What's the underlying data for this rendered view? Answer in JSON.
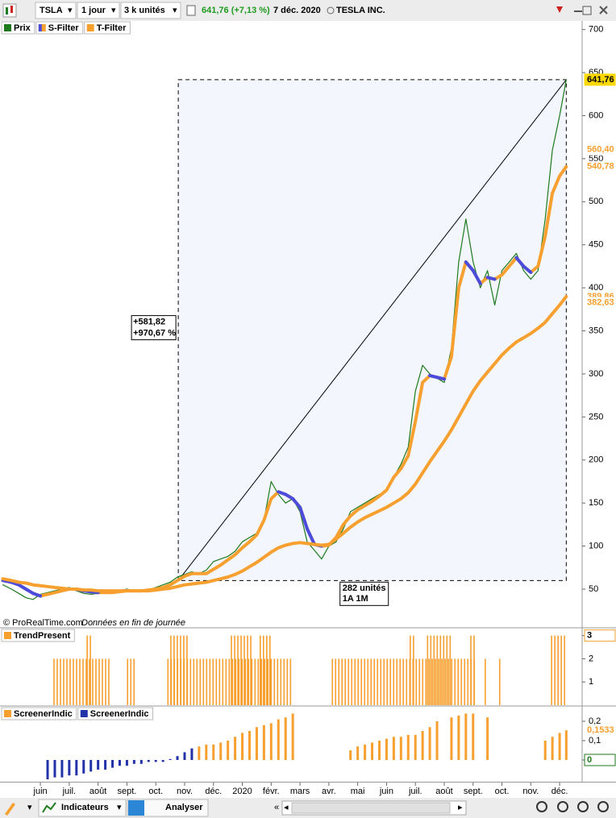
{
  "toolbar": {
    "symbol": "TSLA",
    "interval": "1 jour",
    "units": "3 k unités",
    "quote": "641,76 (+7,13 %)",
    "date": "7 déc. 2020",
    "name": "TESLA INC."
  },
  "bottom_toolbar": {
    "indicators": "Indicateurs",
    "analyze": "Analyser"
  },
  "source": "© ProRealTime.com",
  "source_note": "Données en fin de journée",
  "chart_data": [
    {
      "type": "line",
      "xlim": [
        -1.4,
        18.78
      ],
      "xticks": [
        {
          "value": 0,
          "label": "juin"
        },
        {
          "value": 1,
          "label": "juil."
        },
        {
          "value": 2,
          "label": "août"
        },
        {
          "value": 3,
          "label": "sept."
        },
        {
          "value": 4,
          "label": "oct."
        },
        {
          "value": 5,
          "label": "nov."
        },
        {
          "value": 6,
          "label": "déc."
        },
        {
          "value": 7,
          "label": "2020"
        },
        {
          "value": 8,
          "label": "févr."
        },
        {
          "value": 9,
          "label": "mars"
        },
        {
          "value": 10,
          "label": "avr."
        },
        {
          "value": 11,
          "label": "mai"
        },
        {
          "value": 12,
          "label": "juin"
        },
        {
          "value": 13,
          "label": "juil."
        },
        {
          "value": 14,
          "label": "août"
        },
        {
          "value": 15,
          "label": "sept."
        },
        {
          "value": 16,
          "label": "oct."
        },
        {
          "value": 17,
          "label": "nov."
        },
        {
          "value": 18,
          "label": "déc."
        }
      ],
      "ylim": [
        6,
        710
      ],
      "yticks": [
        50,
        100,
        150,
        200,
        250,
        300,
        350,
        400,
        450,
        500,
        550,
        600,
        650,
        700
      ],
      "x": [
        -1.3,
        -1.0,
        -0.75,
        -0.5,
        -0.25,
        0,
        0.25,
        0.5,
        0.75,
        1.0,
        1.25,
        1.5,
        1.75,
        2.0,
        2.25,
        2.5,
        2.75,
        3.0,
        3.25,
        3.5,
        3.75,
        4.0,
        4.25,
        4.5,
        4.75,
        5.0,
        5.25,
        5.5,
        5.75,
        6.0,
        6.25,
        6.5,
        6.75,
        7.0,
        7.25,
        7.5,
        7.75,
        8.0,
        8.25,
        8.5,
        8.75,
        9.0,
        9.25,
        9.5,
        9.75,
        10.0,
        10.25,
        10.5,
        10.75,
        11.0,
        11.25,
        11.5,
        11.75,
        12.0,
        12.25,
        12.5,
        12.75,
        13.0,
        13.25,
        13.5,
        13.75,
        14.0,
        14.25,
        14.5,
        14.75,
        15.0,
        15.25,
        15.5,
        15.75,
        16.0,
        16.25,
        16.5,
        16.75,
        17.0,
        17.25,
        17.5,
        17.75,
        18.0,
        18.23
      ],
      "series": [
        {
          "name": "Prix",
          "color": "#1e7a1e",
          "values": [
            55,
            50,
            45,
            40,
            38,
            44,
            46,
            48,
            50,
            52,
            48,
            45,
            44,
            45,
            47,
            46,
            48,
            50,
            48,
            47,
            49,
            52,
            55,
            58,
            64,
            67,
            70,
            68,
            72,
            82,
            85,
            88,
            94,
            105,
            110,
            115,
            130,
            175,
            160,
            150,
            155,
            140,
            105,
            95,
            85,
            100,
            105,
            120,
            140,
            145,
            150,
            155,
            160,
            165,
            180,
            195,
            215,
            280,
            310,
            300,
            295,
            290,
            330,
            430,
            480,
            430,
            400,
            420,
            380,
            420,
            430,
            440,
            420,
            410,
            420,
            480,
            560,
            600,
            641.76
          ]
        },
        {
          "name": "S-Filter",
          "color": "#f7a030",
          "decline_color": "#4b4bdc",
          "values": [
            60,
            58,
            55,
            50,
            45,
            42,
            44,
            46,
            48,
            50,
            50,
            48,
            47,
            46,
            46,
            46,
            47,
            48,
            48,
            48,
            49,
            50,
            52,
            55,
            60,
            65,
            68,
            68,
            68,
            73,
            78,
            84,
            90,
            98,
            105,
            113,
            130,
            155,
            163,
            160,
            155,
            145,
            120,
            102,
            100,
            101,
            110,
            125,
            135,
            142,
            147,
            152,
            158,
            165,
            180,
            190,
            205,
            245,
            290,
            298,
            296,
            294,
            320,
            400,
            430,
            420,
            405,
            412,
            410,
            415,
            425,
            435,
            425,
            418,
            425,
            460,
            510,
            530,
            540.78
          ]
        },
        {
          "name": "T-Filter",
          "color": "#f7a030",
          "values": [
            62,
            60,
            58,
            57,
            55,
            54,
            53,
            52,
            51,
            50,
            50,
            49,
            49,
            48,
            48,
            48,
            48,
            48,
            48,
            48,
            48,
            49,
            50,
            51,
            53,
            55,
            56,
            57,
            58,
            60,
            62,
            64,
            67,
            71,
            76,
            81,
            87,
            93,
            98,
            101,
            103,
            104,
            103,
            102,
            101,
            102,
            108,
            115,
            122,
            128,
            133,
            137,
            141,
            145,
            150,
            155,
            162,
            172,
            185,
            198,
            210,
            222,
            235,
            250,
            265,
            280,
            292,
            302,
            312,
            322,
            330,
            337,
            342,
            347,
            353,
            360,
            370,
            380,
            389.86
          ]
        }
      ],
      "axis_markers": [
        {
          "value": 641.76,
          "label": "641,76",
          "color": "#000000",
          "background": "#ffd800"
        },
        {
          "value": 560.4,
          "label": "560,40",
          "color": "#f7a030"
        },
        {
          "value": 540.78,
          "label": "540,78",
          "color": "#f7a030"
        },
        {
          "value": 389.86,
          "label": "389,86",
          "color": "#f7a030"
        },
        {
          "value": 382.63,
          "label": "382,63",
          "color": "#f7a030"
        }
      ],
      "range_box": {
        "x": [
          4.78,
          18.23
        ],
        "y": [
          60,
          641.76
        ],
        "labels": [
          "+581,82",
          "+970,67 %"
        ],
        "footer": [
          "282 unités",
          "1A 1M"
        ]
      }
    },
    {
      "type": "bar",
      "ylim": [
        0,
        3.3
      ],
      "yticks": [
        1,
        2,
        3
      ],
      "series": [
        {
          "name": "TrendPresent",
          "color": "#f7a030",
          "x_ranges": [
            [
              0.45,
              2.4
            ],
            [
              1.6,
              1.75
            ],
            [
              3.0,
              3.3
            ],
            [
              4.4,
              8.7
            ],
            [
              4.5,
              5.1
            ],
            [
              6.6,
              7.3
            ],
            [
              7.6,
              8.0
            ],
            [
              10.1,
              15.1
            ],
            [
              12.8,
              13.0
            ],
            [
              13.4,
              14.2
            ],
            [
              14.9,
              15.1
            ],
            [
              15.4,
              15.5
            ],
            [
              15.9,
              16.0
            ],
            [
              17.7,
              18.2
            ]
          ],
          "values": [
            2,
            3,
            2,
            2,
            3,
            3,
            3,
            2,
            3,
            3,
            3,
            2,
            2,
            3
          ]
        }
      ],
      "axis_markers": [
        {
          "value": 3,
          "label": "3",
          "color": "#000000",
          "border": "#f7a030"
        }
      ]
    },
    {
      "type": "bar",
      "ylim": [
        -0.1125,
        0.275
      ],
      "yticks": [
        0,
        {
          "value": 0.1,
          "label": "0,1"
        },
        {
          "value": 0.2,
          "label": "0,2"
        }
      ],
      "series": [
        {
          "name": "ScreenerIndic",
          "color": "#f7a030",
          "x": [
            5.5,
            5.75,
            6.0,
            6.25,
            6.5,
            6.75,
            7.0,
            7.25,
            7.5,
            7.75,
            8.0,
            8.25,
            8.5,
            8.75,
            10.75,
            11.0,
            11.25,
            11.5,
            11.75,
            12.0,
            12.25,
            12.5,
            12.75,
            13.0,
            13.25,
            13.5,
            13.75,
            14.25,
            14.5,
            14.75,
            15.0,
            15.5,
            17.5,
            17.75,
            18.0,
            18.23
          ],
          "values": [
            0.07,
            0.08,
            0.08,
            0.09,
            0.1,
            0.12,
            0.14,
            0.15,
            0.17,
            0.18,
            0.19,
            0.21,
            0.22,
            0.24,
            0.05,
            0.07,
            0.08,
            0.09,
            0.1,
            0.11,
            0.12,
            0.12,
            0.13,
            0.13,
            0.15,
            0.17,
            0.2,
            0.22,
            0.23,
            0.24,
            0.24,
            0.22,
            0.1,
            0.12,
            0.14,
            0.1533
          ]
        },
        {
          "name": "ScreenerIndic",
          "color": "#2233aa",
          "x": [
            0.25,
            0.5,
            0.75,
            1.0,
            1.25,
            1.5,
            1.75,
            2.0,
            2.25,
            2.5,
            2.75,
            3.0,
            3.25,
            3.5,
            3.75,
            4.0,
            4.25,
            4.5,
            4.75,
            5.0,
            5.25
          ],
          "values": [
            -0.1,
            -0.09,
            -0.09,
            -0.08,
            -0.08,
            -0.07,
            -0.06,
            -0.05,
            -0.05,
            -0.04,
            -0.03,
            -0.03,
            -0.02,
            -0.02,
            -0.01,
            -0.01,
            -0.01,
            0.005,
            0.02,
            0.04,
            0.06
          ]
        }
      ],
      "axis_markers": [
        {
          "value": 0.1533,
          "label": "0,1533",
          "color": "#f7a030"
        },
        {
          "value": 0,
          "label": "0",
          "color": "#1e7a1e",
          "border": "#1e7a1e"
        }
      ]
    }
  ]
}
